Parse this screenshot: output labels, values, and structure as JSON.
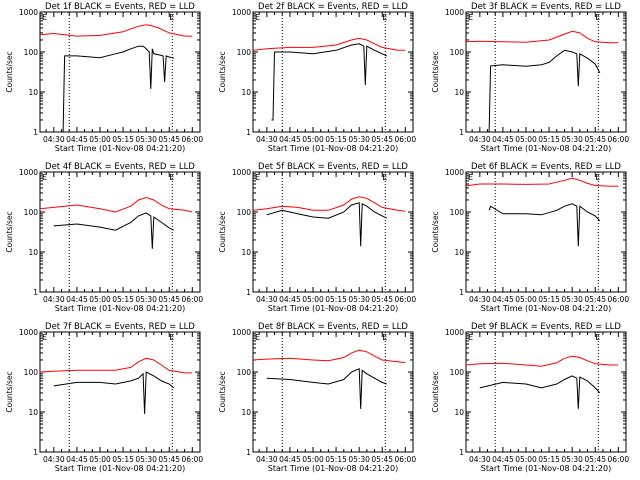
{
  "x_axis_label": "Start Time (01-Nov-08 04:21:20)",
  "y_axis_label": "Counts/sec",
  "chart_data": [
    {
      "type": "line",
      "title": "Det 1f BLACK = Events, RED = LLD",
      "marker": "E",
      "xticks": [
        "04:30",
        "04:45",
        "05:00",
        "05:15",
        "05:30",
        "05:45",
        "06:00"
      ],
      "yticks": [
        "1",
        "10",
        "100",
        "1000"
      ],
      "ylog": true,
      "ylim": [
        1,
        1000
      ],
      "vlines": [
        "04:40",
        "05:47"
      ],
      "series": [
        {
          "name": "LLD",
          "color": "#ff0000",
          "x": [
            "04:21",
            "04:30",
            "04:45",
            "05:00",
            "05:15",
            "05:20",
            "05:25",
            "05:30",
            "05:33",
            "05:38",
            "05:45",
            "05:55",
            "06:00"
          ],
          "values": [
            270,
            290,
            250,
            260,
            320,
            380,
            440,
            480,
            460,
            400,
            300,
            250,
            250
          ]
        },
        {
          "name": "Events",
          "color": "#000000",
          "x": [
            "04:35",
            "04:36",
            "04:37",
            "04:45",
            "05:00",
            "05:10",
            "05:15",
            "05:20",
            "05:25",
            "05:28",
            "05:30",
            "05:32",
            "05:33",
            "05:34",
            "05:35",
            "05:38",
            "05:41",
            "05:42",
            "05:43",
            "05:45",
            "05:48"
          ],
          "values": [
            1,
            1,
            80,
            80,
            72,
            90,
            100,
            120,
            140,
            140,
            120,
            100,
            12,
            120,
            90,
            85,
            80,
            18,
            80,
            75,
            70
          ]
        }
      ]
    },
    {
      "type": "line",
      "title": "Det 2f BLACK = Events, RED = LLD",
      "marker": "E",
      "xticks": [
        "04:30",
        "04:45",
        "05:00",
        "05:15",
        "05:30",
        "05:45",
        "06:00"
      ],
      "yticks": [
        "1",
        "10",
        "100",
        "1000"
      ],
      "ylog": true,
      "ylim": [
        1,
        1000
      ],
      "vlines": [
        "04:40",
        "05:47"
      ],
      "series": [
        {
          "name": "LLD",
          "color": "#ff0000",
          "x": [
            "04:21",
            "04:30",
            "04:45",
            "05:00",
            "05:15",
            "05:25",
            "05:30",
            "05:35",
            "05:40",
            "05:45",
            "05:55",
            "06:00"
          ],
          "values": [
            110,
            120,
            130,
            130,
            150,
            200,
            220,
            200,
            160,
            130,
            110,
            110
          ]
        },
        {
          "name": "Events",
          "color": "#000000",
          "x": [
            "04:33",
            "04:34",
            "04:35",
            "04:45",
            "05:00",
            "05:15",
            "05:25",
            "05:30",
            "05:33",
            "05:34",
            "05:35",
            "05:40",
            "05:45",
            "05:48"
          ],
          "values": [
            2,
            2,
            100,
            100,
            90,
            110,
            150,
            160,
            140,
            15,
            140,
            110,
            90,
            80
          ]
        }
      ]
    },
    {
      "type": "line",
      "title": "Det 3f BLACK = Events, RED = LLD",
      "marker": "E",
      "xticks": [
        "04:30",
        "04:45",
        "05:00",
        "05:15",
        "05:30",
        "05:45",
        "06:00"
      ],
      "yticks": [
        "1",
        "10",
        "100",
        "1000"
      ],
      "ylog": true,
      "ylim": [
        1,
        1000
      ],
      "vlines": [
        "04:40",
        "05:47"
      ],
      "series": [
        {
          "name": "LLD",
          "color": "#ff0000",
          "x": [
            "04:21",
            "04:30",
            "04:45",
            "05:00",
            "05:15",
            "05:25",
            "05:30",
            "05:35",
            "05:40",
            "05:45",
            "05:55",
            "06:00"
          ],
          "values": [
            180,
            185,
            180,
            175,
            200,
            280,
            330,
            300,
            220,
            180,
            170,
            170
          ]
        },
        {
          "name": "Events",
          "color": "#000000",
          "x": [
            "04:35",
            "04:36",
            "04:37",
            "04:45",
            "05:00",
            "05:10",
            "05:15",
            "05:20",
            "05:25",
            "05:30",
            "05:33",
            "05:34",
            "05:35",
            "05:40",
            "05:45",
            "05:48"
          ],
          "values": [
            1,
            1,
            45,
            48,
            44,
            48,
            55,
            80,
            110,
            100,
            90,
            14,
            90,
            70,
            50,
            30
          ]
        }
      ]
    },
    {
      "type": "line",
      "title": "Det 4f BLACK = Events, RED = LLD",
      "marker": "E",
      "xticks": [
        "04:30",
        "04:45",
        "05:00",
        "05:15",
        "05:30",
        "05:45",
        "06:00"
      ],
      "yticks": [
        "1",
        "10",
        "100",
        "1000"
      ],
      "ylog": true,
      "ylim": [
        1,
        1000
      ],
      "vlines": [
        "04:40",
        "05:47"
      ],
      "series": [
        {
          "name": "LLD",
          "color": "#ff0000",
          "x": [
            "04:21",
            "04:30",
            "04:45",
            "05:00",
            "05:10",
            "05:20",
            "05:25",
            "05:30",
            "05:35",
            "05:40",
            "05:45",
            "05:55",
            "06:00"
          ],
          "values": [
            120,
            130,
            150,
            120,
            100,
            140,
            200,
            230,
            200,
            150,
            120,
            110,
            100
          ]
        },
        {
          "name": "Events",
          "color": "#000000",
          "x": [
            "04:30",
            "04:45",
            "05:00",
            "05:10",
            "05:20",
            "05:25",
            "05:30",
            "05:33",
            "05:34",
            "05:35",
            "05:40",
            "05:45",
            "05:48"
          ],
          "values": [
            45,
            50,
            42,
            35,
            55,
            80,
            95,
            80,
            12,
            75,
            55,
            40,
            35
          ]
        }
      ]
    },
    {
      "type": "line",
      "title": "Det 5f BLACK = Events, RED = LLD",
      "marker": "E",
      "xticks": [
        "04:30",
        "04:45",
        "05:00",
        "05:15",
        "05:30",
        "05:45",
        "06:00"
      ],
      "yticks": [
        "1",
        "10",
        "100",
        "1000"
      ],
      "ylog": true,
      "ylim": [
        1,
        1000
      ],
      "vlines": [
        "04:40",
        "05:47"
      ],
      "series": [
        {
          "name": "LLD",
          "color": "#ff0000",
          "x": [
            "04:21",
            "04:30",
            "04:40",
            "04:50",
            "05:00",
            "05:10",
            "05:20",
            "05:25",
            "05:30",
            "05:35",
            "05:40",
            "05:45",
            "05:55",
            "06:00"
          ],
          "values": [
            110,
            120,
            140,
            130,
            110,
            110,
            150,
            210,
            240,
            220,
            170,
            130,
            110,
            105
          ]
        },
        {
          "name": "Events",
          "color": "#000000",
          "x": [
            "04:30",
            "04:40",
            "04:50",
            "05:00",
            "05:10",
            "05:20",
            "05:25",
            "05:30",
            "05:31",
            "05:32",
            "05:35",
            "05:40",
            "05:45",
            "05:48"
          ],
          "values": [
            85,
            110,
            90,
            75,
            70,
            100,
            150,
            170,
            14,
            160,
            140,
            100,
            80,
            70
          ]
        }
      ]
    },
    {
      "type": "line",
      "title": "Det 6f BLACK = Events, RED = LLD",
      "marker": "E",
      "xticks": [
        "04:30",
        "04:45",
        "05:00",
        "05:15",
        "05:30",
        "05:45",
        "06:00"
      ],
      "yticks": [
        "1",
        "10",
        "100",
        "1000"
      ],
      "ylog": true,
      "ylim": [
        1,
        1000
      ],
      "vlines": [
        "04:40",
        "05:47"
      ],
      "series": [
        {
          "name": "LLD",
          "color": "#ff0000",
          "x": [
            "04:21",
            "04:30",
            "04:45",
            "05:00",
            "05:15",
            "05:25",
            "05:30",
            "05:35",
            "05:40",
            "05:45",
            "05:55",
            "06:00"
          ],
          "values": [
            450,
            500,
            500,
            490,
            500,
            620,
            700,
            620,
            520,
            460,
            440,
            440
          ]
        },
        {
          "name": "Events",
          "color": "#000000",
          "x": [
            "04:36",
            "04:37",
            "04:45",
            "05:00",
            "05:10",
            "05:20",
            "05:25",
            "05:30",
            "05:33",
            "05:34",
            "05:35",
            "05:40",
            "05:45",
            "05:48"
          ],
          "values": [
            110,
            140,
            90,
            90,
            85,
            110,
            140,
            160,
            140,
            14,
            140,
            100,
            80,
            60
          ]
        }
      ]
    },
    {
      "type": "line",
      "title": "Det 7f BLACK = Events, RED = LLD",
      "marker": "E",
      "xticks": [
        "04:30",
        "04:45",
        "05:00",
        "05:15",
        "05:30",
        "05:45",
        "06:00"
      ],
      "yticks": [
        "1",
        "10",
        "100",
        "1000"
      ],
      "ylog": true,
      "ylim": [
        1,
        1000
      ],
      "vlines": [
        "04:40",
        "05:47"
      ],
      "series": [
        {
          "name": "LLD",
          "color": "#ff0000",
          "x": [
            "04:21",
            "04:30",
            "04:45",
            "05:00",
            "05:10",
            "05:20",
            "05:25",
            "05:30",
            "05:35",
            "05:40",
            "05:45",
            "05:55",
            "06:00"
          ],
          "values": [
            100,
            105,
            110,
            110,
            110,
            130,
            180,
            220,
            200,
            150,
            110,
            95,
            95
          ]
        },
        {
          "name": "Events",
          "color": "#000000",
          "x": [
            "04:30",
            "04:45",
            "05:00",
            "05:10",
            "05:20",
            "05:25",
            "05:28",
            "05:29",
            "05:30",
            "05:35",
            "05:40",
            "05:45",
            "05:48"
          ],
          "values": [
            45,
            55,
            55,
            50,
            60,
            70,
            90,
            9,
            100,
            80,
            60,
            50,
            40
          ]
        }
      ]
    },
    {
      "type": "line",
      "title": "Det 8f BLACK = Events, RED = LLD",
      "marker": "E",
      "xticks": [
        "04:30",
        "04:45",
        "05:00",
        "05:15",
        "05:30",
        "05:45",
        "06:00"
      ],
      "yticks": [
        "1",
        "10",
        "100",
        "1000"
      ],
      "ylog": true,
      "ylim": [
        1,
        1000
      ],
      "vlines": [
        "04:40",
        "05:47"
      ],
      "series": [
        {
          "name": "LLD",
          "color": "#ff0000",
          "x": [
            "04:21",
            "04:30",
            "04:45",
            "05:00",
            "05:10",
            "05:20",
            "05:25",
            "05:30",
            "05:35",
            "05:40",
            "05:45",
            "05:55",
            "06:00"
          ],
          "values": [
            200,
            210,
            220,
            200,
            190,
            230,
            300,
            350,
            320,
            250,
            200,
            180,
            170
          ]
        },
        {
          "name": "Events",
          "color": "#000000",
          "x": [
            "04:30",
            "04:45",
            "05:00",
            "05:10",
            "05:20",
            "05:25",
            "05:30",
            "05:31",
            "05:32",
            "05:35",
            "05:40",
            "05:45",
            "05:48"
          ],
          "values": [
            70,
            65,
            55,
            50,
            65,
            100,
            120,
            12,
            110,
            90,
            70,
            55,
            50
          ]
        }
      ]
    },
    {
      "type": "line",
      "title": "Det 9f BLACK = Events, RED = LLD",
      "marker": "E",
      "xticks": [
        "04:30",
        "04:45",
        "05:00",
        "05:15",
        "05:30",
        "05:45",
        "06:00"
      ],
      "yticks": [
        "1",
        "10",
        "100",
        "1000"
      ],
      "ylog": true,
      "ylim": [
        1,
        1000
      ],
      "vlines": [
        "04:40",
        "05:47"
      ],
      "series": [
        {
          "name": "LLD",
          "color": "#ff0000",
          "x": [
            "04:21",
            "04:30",
            "04:45",
            "05:00",
            "05:10",
            "05:20",
            "05:25",
            "05:30",
            "05:35",
            "05:40",
            "05:45",
            "05:55",
            "06:00"
          ],
          "values": [
            150,
            160,
            165,
            150,
            140,
            170,
            220,
            250,
            230,
            190,
            160,
            150,
            150
          ]
        },
        {
          "name": "Events",
          "color": "#000000",
          "x": [
            "04:30",
            "04:45",
            "05:00",
            "05:10",
            "05:20",
            "05:25",
            "05:30",
            "05:33",
            "05:34",
            "05:35",
            "05:40",
            "05:45",
            "05:48"
          ],
          "values": [
            40,
            55,
            50,
            40,
            50,
            65,
            80,
            70,
            12,
            75,
            60,
            40,
            30
          ]
        }
      ]
    }
  ]
}
